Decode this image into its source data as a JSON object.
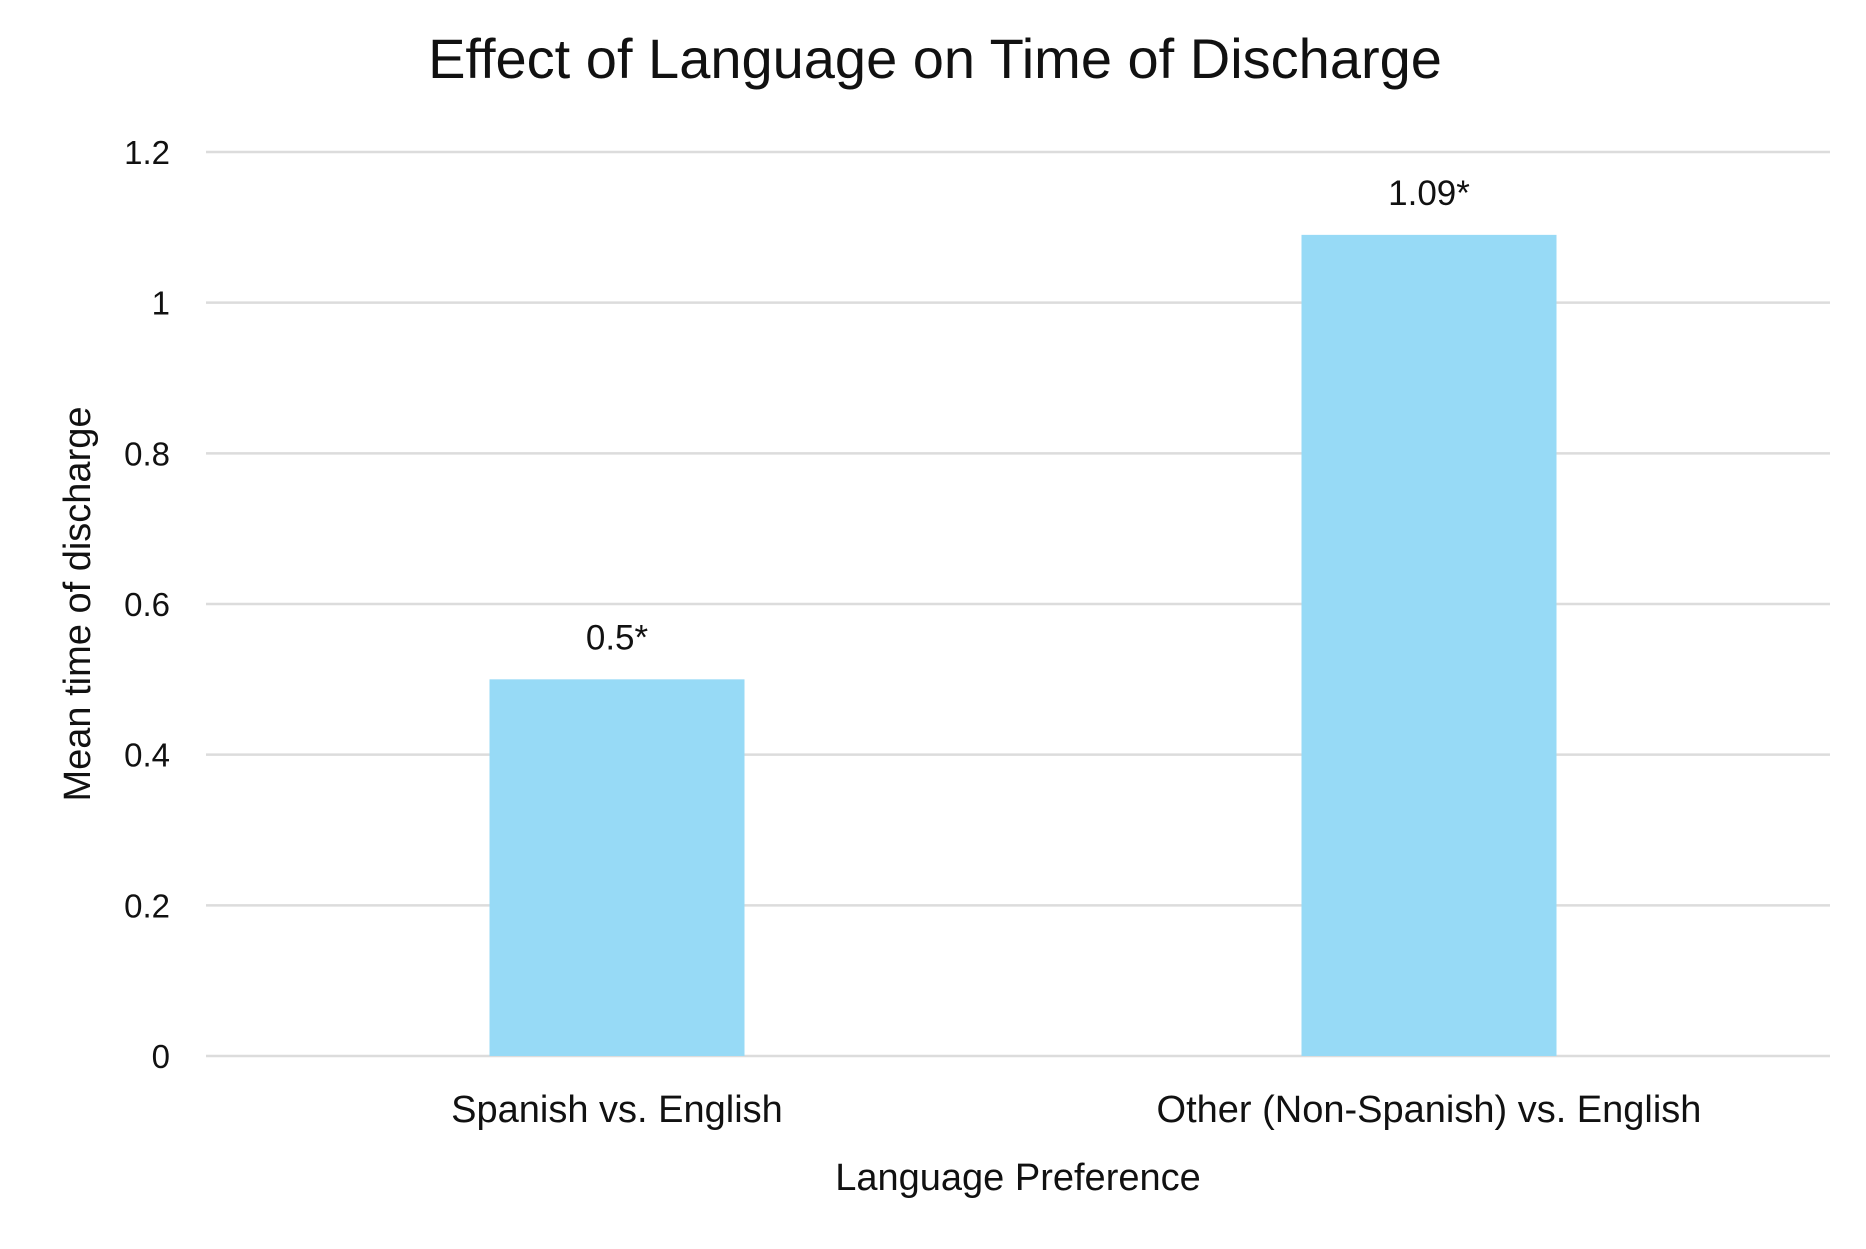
{
  "chart_data": {
    "type": "bar",
    "title": "Effect of Language on Time of Discharge",
    "xlabel": "Language Preference",
    "ylabel": "Mean time of discharge",
    "categories": [
      "Spanish vs. English",
      "Other (Non-Spanish) vs. English"
    ],
    "values": [
      0.5,
      1.09
    ],
    "data_labels": [
      "0.5*",
      "1.09*"
    ],
    "ylim": [
      0,
      1.2
    ],
    "yticks": [
      0,
      0.2,
      0.4,
      0.6,
      0.8,
      1,
      1.2
    ],
    "ytick_labels": [
      "0",
      "0.2",
      "0.4",
      "0.6",
      "0.8",
      "1",
      "1.2"
    ],
    "grid": true,
    "legend": "none",
    "colors": {
      "bar": "#97daf6",
      "grid": "#dcdcdc"
    }
  }
}
